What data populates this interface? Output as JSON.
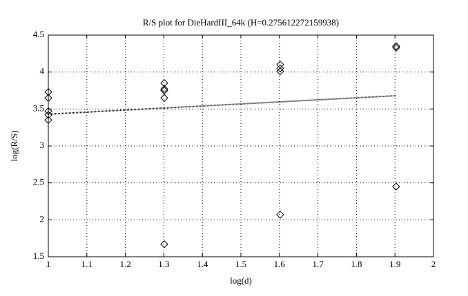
{
  "chart_data": {
    "type": "scatter",
    "title": "R/S plot for DieHardIII_64k (H=0.275612272159938)",
    "x_label": "log(d)",
    "y_label": "log(R/S)",
    "xlim": [
      1,
      2
    ],
    "ylim": [
      1.5,
      4.5
    ],
    "xticks": [
      1,
      1.1,
      1.2,
      1.3,
      1.4,
      1.5,
      1.6,
      1.7,
      1.8,
      1.9,
      2
    ],
    "yticks": [
      1.5,
      2,
      2.5,
      3,
      3.5,
      4,
      4.5
    ],
    "grid": true,
    "series": [
      {
        "type": "scatter",
        "color": "#000000",
        "x": [
          1,
          1,
          1,
          1,
          1,
          1.301,
          1.301,
          1.301,
          1.301,
          1.301,
          1.602,
          1.602,
          1.602,
          1.602,
          1.903,
          1.903,
          1.903
        ],
        "values": [
          3.73,
          3.65,
          3.47,
          3.42,
          3.35,
          3.85,
          3.77,
          3.75,
          3.65,
          1.67,
          4.1,
          4.05,
          4.01,
          2.07,
          4.35,
          4.33,
          2.45
        ]
      },
      {
        "type": "line",
        "color": "#000000",
        "x": [
          1,
          1.903
        ],
        "values": [
          3.43,
          3.68
        ]
      }
    ]
  }
}
